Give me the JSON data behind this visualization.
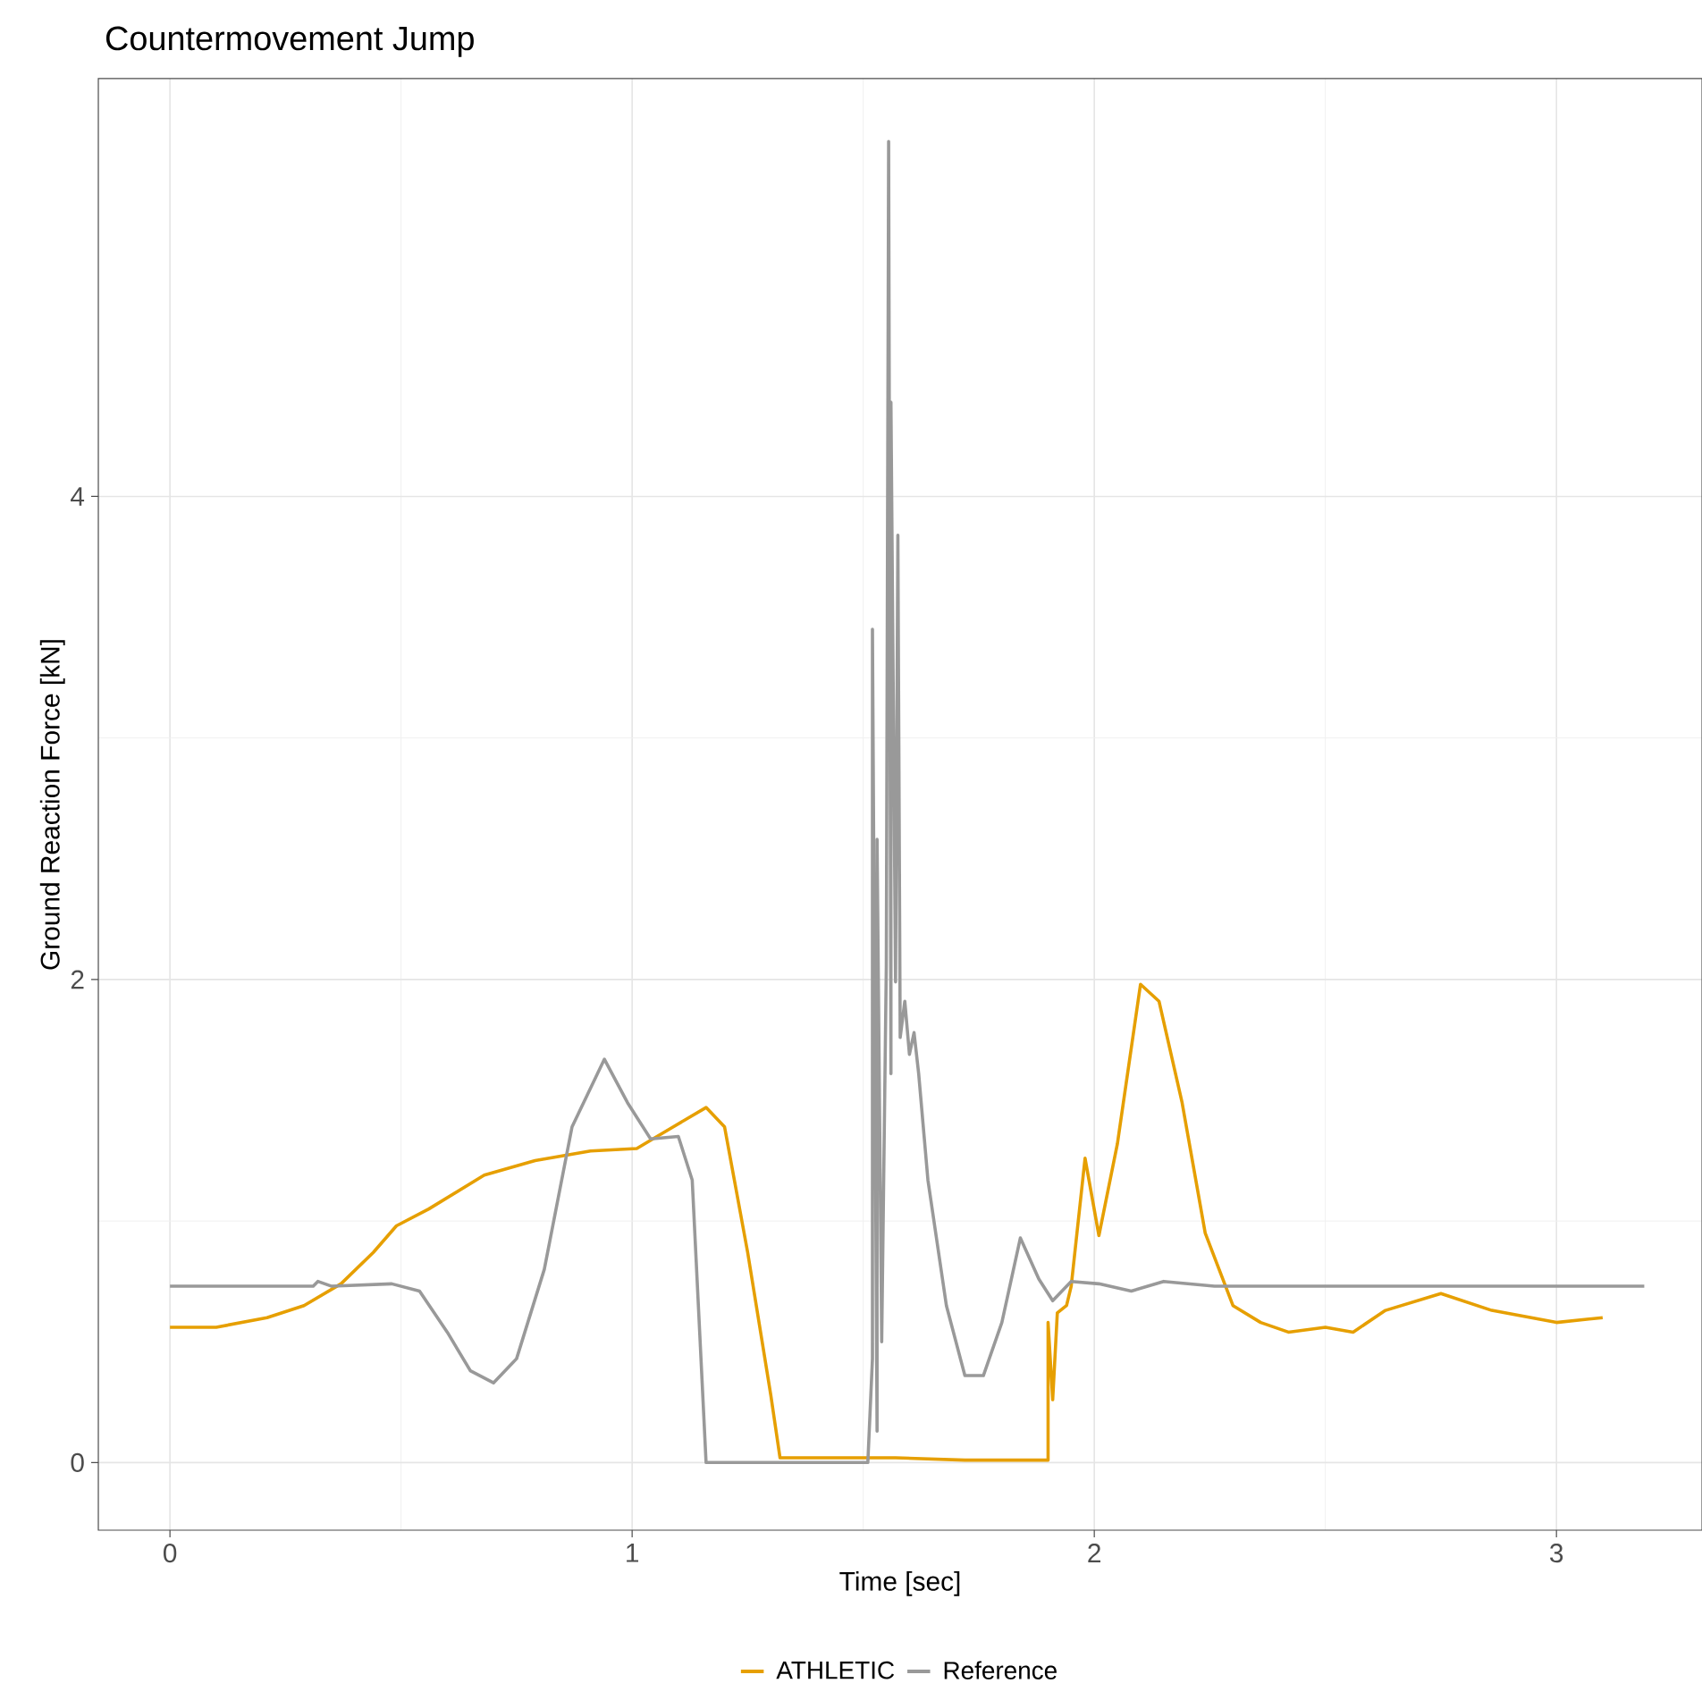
{
  "chart_data": {
    "type": "line",
    "title": "Countermovement Jump",
    "xlabel": "Time [sec]",
    "ylabel": "Ground Reaction Force [kN]",
    "xlim": [
      -0.155,
      3.315
    ],
    "ylim": [
      -0.28,
      5.73
    ],
    "xticks": [
      0,
      1,
      2,
      3
    ],
    "yticks": [
      0,
      2,
      4
    ],
    "grid": true,
    "legend": "bottom",
    "marker": "none",
    "line_style": "solid",
    "series": [
      {
        "name": "ATHLETIC",
        "color": "#e69f00",
        "x": [
          0,
          0.1,
          0.21,
          0.29,
          0.37,
          0.44,
          0.49,
          0.56,
          0.68,
          0.79,
          0.91,
          1.01,
          1.08,
          1.16,
          1.2,
          1.25,
          1.3,
          1.32,
          1.49,
          1.57,
          1.72,
          1.9,
          1.9,
          1.91,
          1.92,
          1.94,
          1.95,
          1.98,
          2.01,
          2.05,
          2.1,
          2.14,
          2.19,
          2.24,
          2.3,
          2.36,
          2.42,
          2.5,
          2.56,
          2.63,
          2.75,
          2.86,
          3.0,
          3.1
        ],
        "values": [
          0.56,
          0.56,
          0.6,
          0.65,
          0.74,
          0.87,
          0.98,
          1.05,
          1.19,
          1.25,
          1.29,
          1.3,
          1.38,
          1.47,
          1.39,
          0.87,
          0.28,
          0.02,
          0.02,
          0.02,
          0.01,
          0.01,
          0.58,
          0.26,
          0.62,
          0.65,
          0.73,
          1.26,
          0.94,
          1.32,
          1.98,
          1.91,
          1.49,
          0.95,
          0.65,
          0.58,
          0.54,
          0.56,
          0.54,
          0.63,
          0.7,
          0.63,
          0.58,
          0.6
        ]
      },
      {
        "name": "Reference",
        "color": "#999999",
        "x": [
          0,
          0.31,
          0.32,
          0.35,
          0.48,
          0.54,
          0.6,
          0.65,
          0.7,
          0.75,
          0.81,
          0.87,
          0.94,
          0.99,
          1.04,
          1.1,
          1.13,
          1.16,
          1.3,
          1.51,
          1.52,
          1.52,
          1.53,
          1.53,
          1.54,
          1.55,
          1.555,
          1.56,
          1.56,
          1.57,
          1.575,
          1.58,
          1.59,
          1.6,
          1.61,
          1.62,
          1.64,
          1.68,
          1.72,
          1.76,
          1.8,
          1.84,
          1.88,
          1.91,
          1.95,
          2.01,
          2.08,
          2.15,
          2.26,
          2.73,
          3.19
        ],
        "values": [
          0.73,
          0.73,
          0.75,
          0.73,
          0.74,
          0.71,
          0.54,
          0.38,
          0.33,
          0.43,
          0.8,
          1.39,
          1.67,
          1.49,
          1.34,
          1.35,
          1.17,
          0.0,
          0.0,
          0.0,
          0.43,
          3.45,
          0.13,
          2.58,
          0.5,
          2.06,
          5.47,
          1.61,
          4.39,
          1.99,
          3.84,
          1.76,
          1.91,
          1.69,
          1.78,
          1.61,
          1.17,
          0.65,
          0.36,
          0.36,
          0.58,
          0.93,
          0.76,
          0.67,
          0.75,
          0.74,
          0.71,
          0.75,
          0.73,
          0.73,
          0.73
        ]
      }
    ]
  }
}
